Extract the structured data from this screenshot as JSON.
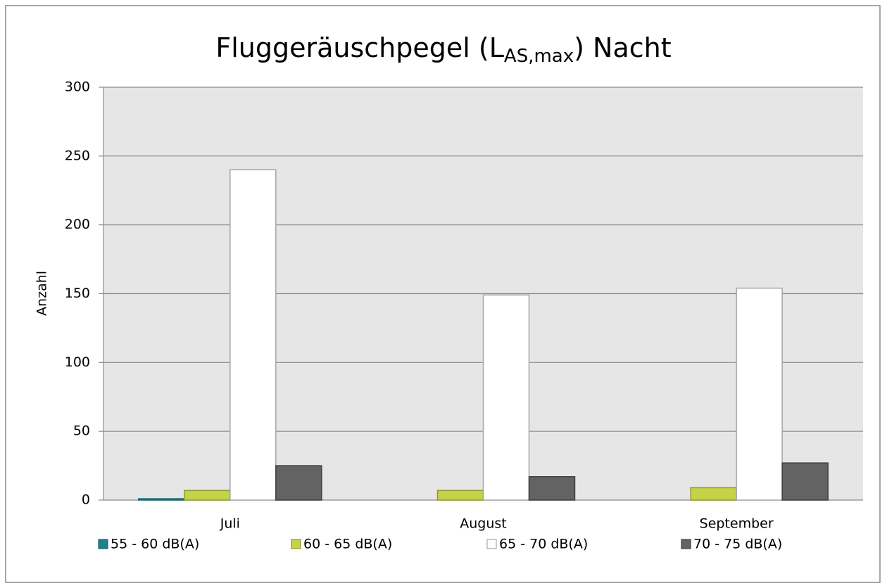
{
  "chart_data": {
    "type": "bar",
    "title": [
      "Fluggeräuschpegel (L",
      "AS,max",
      ") Nacht"
    ],
    "y_label": "Anzahl",
    "categories": [
      "Juli",
      "August",
      "September"
    ],
    "series": [
      {
        "name": "55 - 60 dB(A)",
        "color": "#217f8e",
        "stroke": "#1a6672",
        "values": [
          1,
          0,
          0
        ]
      },
      {
        "name": "60 - 65 dB(A)",
        "color": "#c6d247",
        "stroke": "#8e9a2e",
        "values": [
          7,
          7,
          9
        ]
      },
      {
        "name": "65 - 70 dB(A)",
        "color": "#ffffff",
        "stroke": "#a6a6a6",
        "values": [
          240,
          149,
          154
        ]
      },
      {
        "name": "70 - 75 dB(A)",
        "color": "#636363",
        "stroke": "#404040",
        "values": [
          25,
          17,
          27
        ]
      }
    ],
    "ylim": [
      0,
      300
    ],
    "yticks": [
      0,
      50,
      100,
      150,
      200,
      250,
      300
    ],
    "grid": true,
    "legend": "bottom"
  }
}
